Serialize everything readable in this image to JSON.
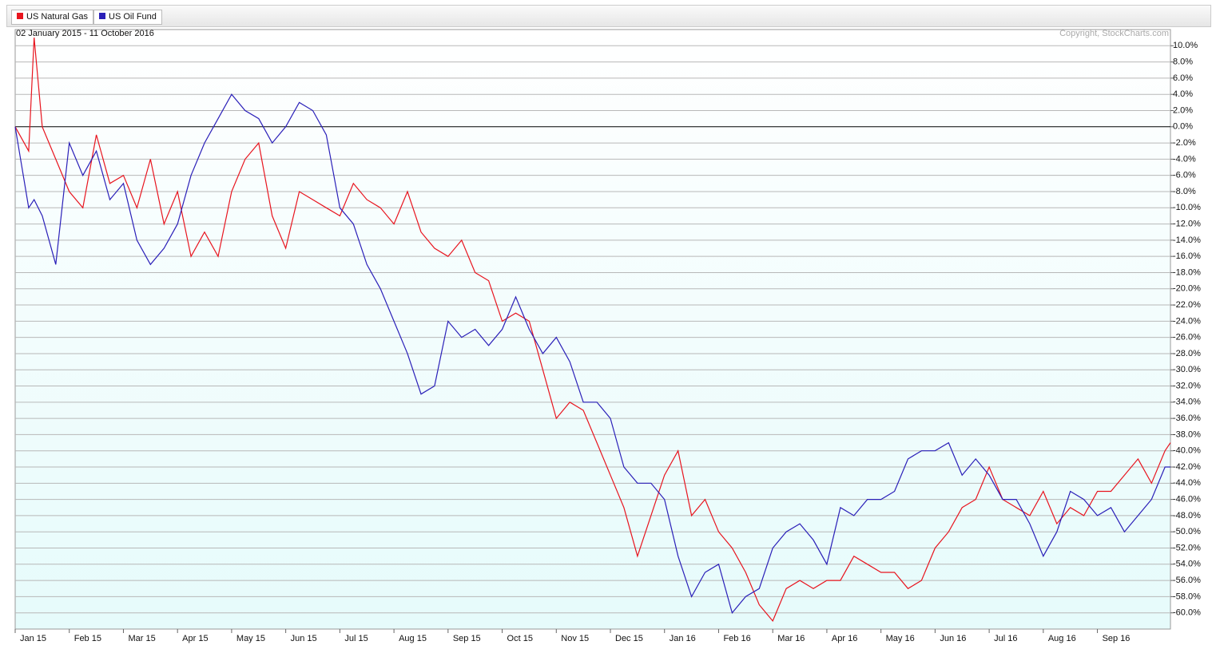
{
  "chart_data": {
    "type": "line",
    "subtitle": "02 January 2015 - 11 October 2016",
    "source": "Copyright, StockCharts.com",
    "x": [
      0,
      0.25,
      0.35,
      0.5,
      0.75,
      1,
      1.25,
      1.5,
      1.75,
      2,
      2.25,
      2.5,
      2.75,
      3,
      3.25,
      3.5,
      3.75,
      4,
      4.25,
      4.5,
      4.75,
      5,
      5.25,
      5.5,
      5.75,
      6,
      6.25,
      6.5,
      6.75,
      7,
      7.25,
      7.5,
      7.75,
      8,
      8.25,
      8.5,
      8.75,
      9,
      9.25,
      9.5,
      9.75,
      10,
      10.25,
      10.5,
      10.75,
      11,
      11.25,
      11.5,
      11.75,
      12,
      12.25,
      12.5,
      12.75,
      13,
      13.25,
      13.5,
      13.75,
      14,
      14.25,
      14.5,
      14.75,
      15,
      15.25,
      15.5,
      15.75,
      16,
      16.25,
      16.5,
      16.75,
      17,
      17.25,
      17.5,
      17.75,
      18,
      18.25,
      18.5,
      18.75,
      19,
      19.25,
      19.5,
      19.75,
      20,
      20.25,
      20.5,
      20.75,
      21,
      21.25,
      21.35
    ],
    "series": [
      {
        "name": "US Natural Gas",
        "color": "#e8141e",
        "values": [
          0,
          -3,
          11,
          0,
          -4,
          -8,
          -10,
          -1,
          -7,
          -6,
          -10,
          -4,
          -12,
          -8,
          -16,
          -13,
          -16,
          -8,
          -4,
          -2,
          -11,
          -15,
          -8,
          -9,
          -10,
          -11,
          -7,
          -9,
          -10,
          -12,
          -8,
          -13,
          -15,
          -16,
          -14,
          -18,
          -19,
          -24,
          -23,
          -24,
          -30,
          -36,
          -34,
          -35,
          -39,
          -43,
          -47,
          -53,
          -48,
          -43,
          -40,
          -48,
          -46,
          -50,
          -52,
          -55,
          -59,
          -61,
          -57,
          -56,
          -57,
          -56,
          -56,
          -53,
          -54,
          -55,
          -55,
          -57,
          -56,
          -52,
          -50,
          -47,
          -46,
          -42,
          -46,
          -47,
          -48,
          -45,
          -49,
          -47,
          -48,
          -45,
          -45,
          -43,
          -41,
          -44,
          -40,
          -39
        ]
      },
      {
        "name": "US Oil Fund",
        "color": "#2a1fb8",
        "values": [
          0,
          -10,
          -9,
          -11,
          -17,
          -2,
          -6,
          -3,
          -9,
          -7,
          -14,
          -17,
          -15,
          -12,
          -6,
          -2,
          1,
          4,
          2,
          1,
          -2,
          0,
          3,
          2,
          -1,
          -10,
          -12,
          -17,
          -20,
          -24,
          -28,
          -33,
          -32,
          -24,
          -26,
          -25,
          -27,
          -25,
          -21,
          -25,
          -28,
          -26,
          -29,
          -34,
          -34,
          -36,
          -42,
          -44,
          -44,
          -46,
          -53,
          -58,
          -55,
          -54,
          -60,
          -58,
          -57,
          -52,
          -50,
          -49,
          -51,
          -54,
          -47,
          -48,
          -46,
          -46,
          -45,
          -41,
          -40,
          -40,
          -39,
          -43,
          -41,
          -43,
          -46,
          -46,
          -49,
          -53,
          -50,
          -45,
          -46,
          -48,
          -47,
          -50,
          -48,
          -46,
          -42,
          -42
        ]
      }
    ],
    "xlim": [
      0,
      21.35
    ],
    "xticks": [
      {
        "value": 0,
        "label": "Jan 15"
      },
      {
        "value": 1,
        "label": "Feb 15"
      },
      {
        "value": 2,
        "label": "Mar 15"
      },
      {
        "value": 3,
        "label": "Apr 15"
      },
      {
        "value": 4,
        "label": "May 15"
      },
      {
        "value": 5,
        "label": "Jun 15"
      },
      {
        "value": 6,
        "label": "Jul 15"
      },
      {
        "value": 7,
        "label": "Aug 15"
      },
      {
        "value": 8,
        "label": "Sep 15"
      },
      {
        "value": 9,
        "label": "Oct 15"
      },
      {
        "value": 10,
        "label": "Nov 15"
      },
      {
        "value": 11,
        "label": "Dec 15"
      },
      {
        "value": 12,
        "label": "Jan 16"
      },
      {
        "value": 13,
        "label": "Feb 16"
      },
      {
        "value": 14,
        "label": "Mar 16"
      },
      {
        "value": 15,
        "label": "Apr 16"
      },
      {
        "value": 16,
        "label": "May 16"
      },
      {
        "value": 17,
        "label": "Jun 16"
      },
      {
        "value": 18,
        "label": "Jul 16"
      },
      {
        "value": 19,
        "label": "Aug 16"
      },
      {
        "value": 20,
        "label": "Sep 16"
      }
    ],
    "ylim": [
      -62,
      12
    ],
    "yticks": [
      {
        "value": 10,
        "label": "10.0%"
      },
      {
        "value": 8,
        "label": "8.0%"
      },
      {
        "value": 6,
        "label": "6.0%"
      },
      {
        "value": 4,
        "label": "4.0%"
      },
      {
        "value": 2,
        "label": "2.0%"
      },
      {
        "value": 0,
        "label": "0.0%"
      },
      {
        "value": -2,
        "label": "-2.0%"
      },
      {
        "value": -4,
        "label": "-4.0%"
      },
      {
        "value": -6,
        "label": "-6.0%"
      },
      {
        "value": -8,
        "label": "-8.0%"
      },
      {
        "value": -10,
        "label": "-10.0%"
      },
      {
        "value": -12,
        "label": "-12.0%"
      },
      {
        "value": -14,
        "label": "-14.0%"
      },
      {
        "value": -16,
        "label": "-16.0%"
      },
      {
        "value": -18,
        "label": "-18.0%"
      },
      {
        "value": -20,
        "label": "-20.0%"
      },
      {
        "value": -22,
        "label": "-22.0%"
      },
      {
        "value": -24,
        "label": "-24.0%"
      },
      {
        "value": -26,
        "label": "-26.0%"
      },
      {
        "value": -28,
        "label": "-28.0%"
      },
      {
        "value": -30,
        "label": "-30.0%"
      },
      {
        "value": -32,
        "label": "-32.0%"
      },
      {
        "value": -34,
        "label": "-34.0%"
      },
      {
        "value": -36,
        "label": "-36.0%"
      },
      {
        "value": -38,
        "label": "-38.0%"
      },
      {
        "value": -40,
        "label": "-40.0%"
      },
      {
        "value": -42,
        "label": "-42.0%"
      },
      {
        "value": -44,
        "label": "-44.0%"
      },
      {
        "value": -46,
        "label": "-46.0%"
      },
      {
        "value": -48,
        "label": "-48.0%"
      },
      {
        "value": -50,
        "label": "-50.0%"
      },
      {
        "value": -52,
        "label": "-52.0%"
      },
      {
        "value": -54,
        "label": "-54.0%"
      },
      {
        "value": -56,
        "label": "-56.0%"
      },
      {
        "value": -58,
        "label": "-58.0%"
      },
      {
        "value": -60,
        "label": "-60.0%"
      }
    ],
    "grid": true
  }
}
